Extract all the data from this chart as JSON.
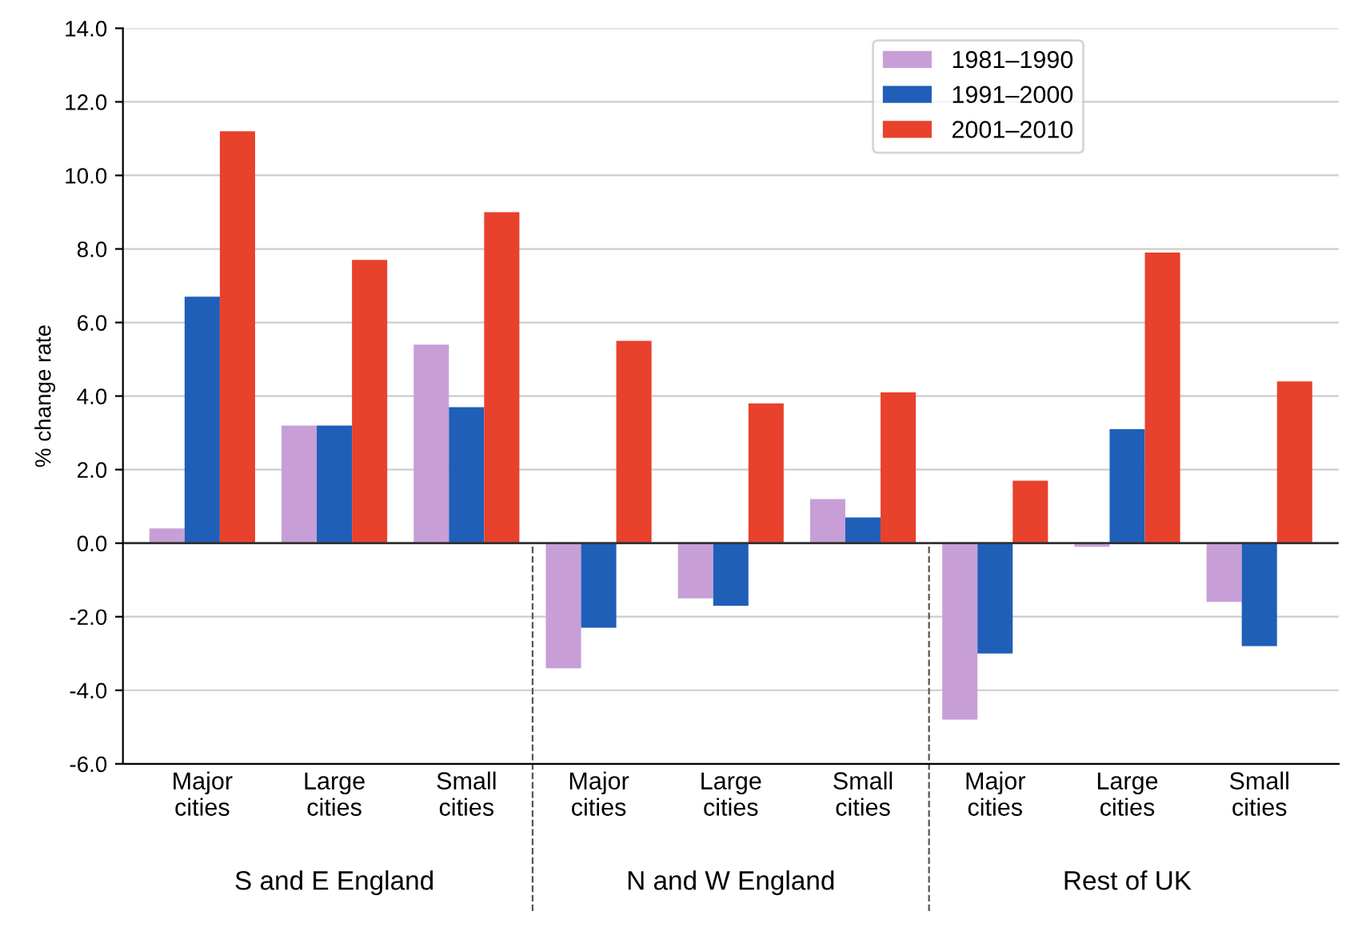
{
  "chart_data": {
    "type": "bar",
    "ylabel": "% change rate",
    "categories": [
      "Major cities",
      "Large cities",
      "Small cities",
      "Major cities",
      "Large cities",
      "Small cities",
      "Major cities",
      "Large cities",
      "Small cities"
    ],
    "series": [
      {
        "name": "1981–1990",
        "color": "#c79fd6",
        "values": [
          0.4,
          3.2,
          5.4,
          -3.4,
          -1.5,
          1.2,
          -4.8,
          -0.1,
          -1.6
        ]
      },
      {
        "name": "1991–2000",
        "color": "#1f5fb8",
        "values": [
          6.7,
          3.2,
          3.7,
          -2.3,
          -1.7,
          0.7,
          -3.0,
          3.1,
          -2.8
        ]
      },
      {
        "name": "2001–2010",
        "color": "#e8412c",
        "values": [
          11.2,
          7.7,
          9.0,
          5.5,
          3.8,
          4.1,
          1.7,
          7.9,
          4.4
        ]
      }
    ],
    "ylim": [
      -6,
      14
    ],
    "yticks": [
      {
        "value": -6,
        "label": "-6.0"
      },
      {
        "value": -4,
        "label": "-4.0"
      },
      {
        "value": -2,
        "label": "-2.0"
      },
      {
        "value": 0,
        "label": "0.0"
      },
      {
        "value": 2,
        "label": "2.0"
      },
      {
        "value": 4,
        "label": "4.0"
      },
      {
        "value": 6,
        "label": "6.0"
      },
      {
        "value": 8,
        "label": "8.0"
      },
      {
        "value": 10,
        "label": "10.0"
      },
      {
        "value": 12,
        "label": "12.0"
      },
      {
        "value": 14,
        "label": "14.0"
      }
    ],
    "grid": "y",
    "legend": "top right",
    "annotations": [
      "S and E England",
      "N and W England",
      "Rest of UK"
    ]
  }
}
